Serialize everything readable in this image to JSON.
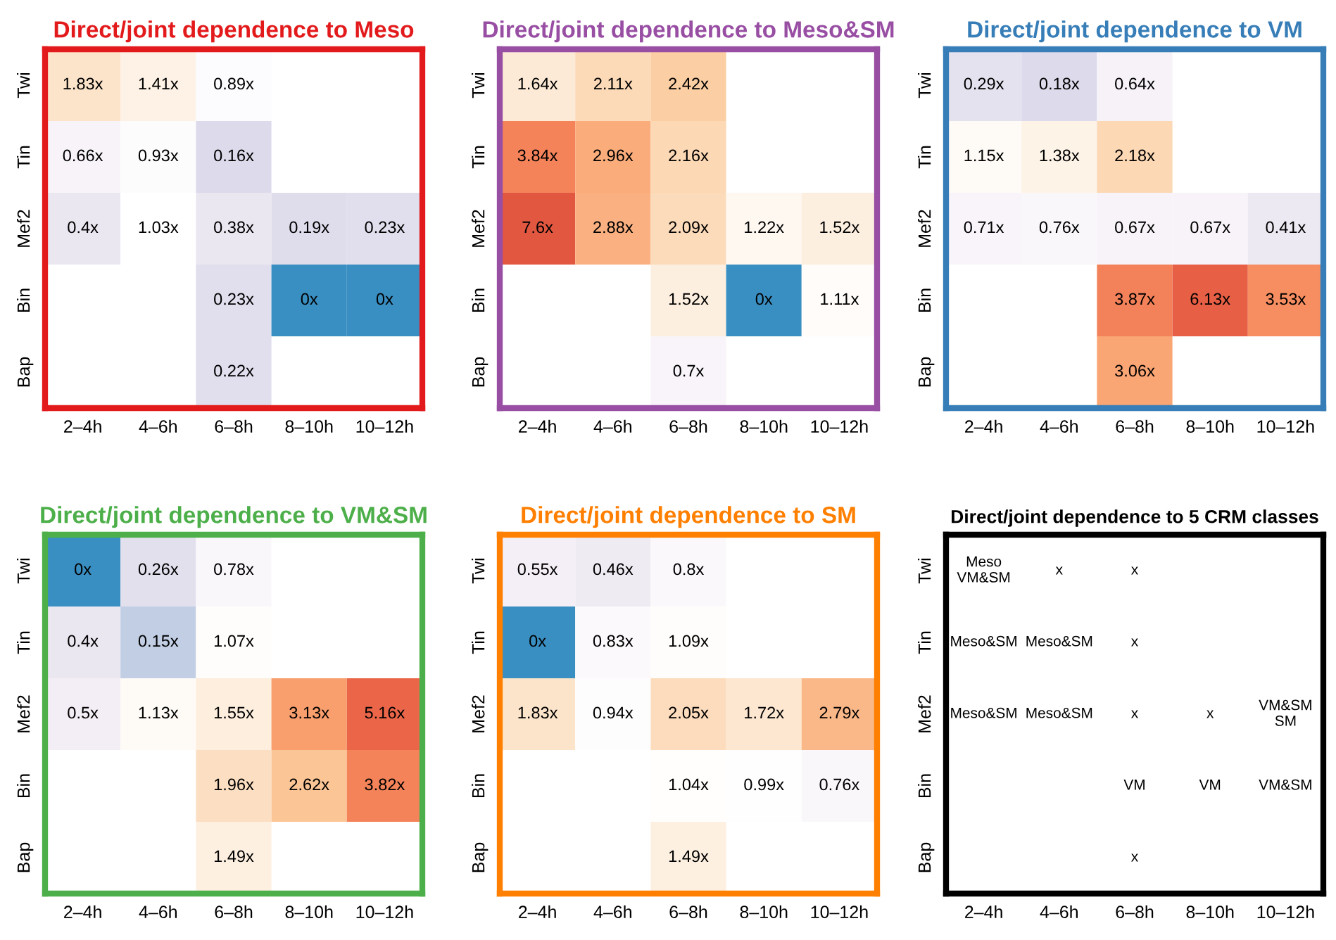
{
  "chart_data": [
    {
      "type": "heatmap",
      "title": "Direct/joint dependence to Meso",
      "color": "#e31a1c",
      "categories": [
        "2–4h",
        "4–6h",
        "6–8h",
        "8–10h",
        "10–12h"
      ],
      "y_categories": [
        "Twi",
        "Tin",
        "Mef2",
        "Bin",
        "Bap"
      ],
      "cells": [
        [
          1.83,
          1.41,
          0.89,
          null,
          null
        ],
        [
          0.66,
          0.93,
          0.16,
          null,
          null
        ],
        [
          0.4,
          1.03,
          0.38,
          0.19,
          0.23
        ],
        [
          null,
          null,
          0.23,
          0,
          0
        ],
        [
          null,
          null,
          0.22,
          null,
          null
        ]
      ],
      "cell_labels": [
        [
          "1.83x",
          "1.41x",
          "0.89x",
          null,
          null
        ],
        [
          "0.66x",
          "0.93x",
          "0.16x",
          null,
          null
        ],
        [
          "0.4x",
          "1.03x",
          "0.38x",
          "0.19x",
          "0.23x"
        ],
        [
          null,
          null,
          "0.23x",
          "0x",
          "0x"
        ],
        [
          null,
          null,
          "0.22x",
          null,
          null
        ]
      ]
    },
    {
      "type": "heatmap",
      "title": "Direct/joint dependence to Meso&SM",
      "color": "#984ea3",
      "categories": [
        "2–4h",
        "4–6h",
        "6–8h",
        "8–10h",
        "10–12h"
      ],
      "y_categories": [
        "Twi",
        "Tin",
        "Mef2",
        "Bin",
        "Bap"
      ],
      "cells": [
        [
          1.64,
          2.11,
          2.42,
          null,
          null
        ],
        [
          3.84,
          2.96,
          2.16,
          null,
          null
        ],
        [
          7.6,
          2.88,
          2.09,
          1.22,
          1.52
        ],
        [
          null,
          null,
          1.52,
          0,
          1.11
        ],
        [
          null,
          null,
          0.7,
          null,
          null
        ]
      ],
      "cell_labels": [
        [
          "1.64x",
          "2.11x",
          "2.42x",
          null,
          null
        ],
        [
          "3.84x",
          "2.96x",
          "2.16x",
          null,
          null
        ],
        [
          "7.6x",
          "2.88x",
          "2.09x",
          "1.22x",
          "1.52x"
        ],
        [
          null,
          null,
          "1.52x",
          "0x",
          "1.11x"
        ],
        [
          null,
          null,
          "0.7x",
          null,
          null
        ]
      ]
    },
    {
      "type": "heatmap",
      "title": "Direct/joint dependence to VM",
      "color": "#377eb8",
      "categories": [
        "2–4h",
        "4–6h",
        "6–8h",
        "8–10h",
        "10–12h"
      ],
      "y_categories": [
        "Twi",
        "Tin",
        "Mef2",
        "Bin",
        "Bap"
      ],
      "cells": [
        [
          0.29,
          0.18,
          0.64,
          null,
          null
        ],
        [
          1.15,
          1.38,
          2.18,
          null,
          null
        ],
        [
          0.71,
          0.76,
          0.67,
          0.67,
          0.41
        ],
        [
          null,
          null,
          3.87,
          6.13,
          3.53
        ],
        [
          null,
          null,
          3.06,
          null,
          null
        ]
      ],
      "cell_labels": [
        [
          "0.29x",
          "0.18x",
          "0.64x",
          null,
          null
        ],
        [
          "1.15x",
          "1.38x",
          "2.18x",
          null,
          null
        ],
        [
          "0.71x",
          "0.76x",
          "0.67x",
          "0.67x",
          "0.41x"
        ],
        [
          null,
          null,
          "3.87x",
          "6.13x",
          "3.53x"
        ],
        [
          null,
          null,
          "3.06x",
          null,
          null
        ]
      ]
    },
    {
      "type": "heatmap",
      "title": "Direct/joint dependence to VM&SM",
      "color": "#4daf4a",
      "categories": [
        "2–4h",
        "4–6h",
        "6–8h",
        "8–10h",
        "10–12h"
      ],
      "y_categories": [
        "Twi",
        "Tin",
        "Mef2",
        "Bin",
        "Bap"
      ],
      "cells": [
        [
          0,
          0.26,
          0.78,
          null,
          null
        ],
        [
          0.4,
          0.15,
          1.07,
          null,
          null
        ],
        [
          0.5,
          1.13,
          1.55,
          3.13,
          5.16
        ],
        [
          null,
          null,
          1.96,
          2.62,
          3.82
        ],
        [
          null,
          null,
          1.49,
          null,
          null
        ]
      ],
      "cell_labels": [
        [
          "0x",
          "0.26x",
          "0.78x",
          null,
          null
        ],
        [
          "0.4x",
          "0.15x",
          "1.07x",
          null,
          null
        ],
        [
          "0.5x",
          "1.13x",
          "1.55x",
          "3.13x",
          "5.16x"
        ],
        [
          null,
          null,
          "1.96x",
          "2.62x",
          "3.82x"
        ],
        [
          null,
          null,
          "1.49x",
          null,
          null
        ]
      ]
    },
    {
      "type": "heatmap",
      "title": "Direct/joint dependence to SM",
      "color": "#ff7f00",
      "categories": [
        "2–4h",
        "4–6h",
        "6–8h",
        "8–10h",
        "10–12h"
      ],
      "y_categories": [
        "Twi",
        "Tin",
        "Mef2",
        "Bin",
        "Bap"
      ],
      "cells": [
        [
          0.55,
          0.46,
          0.8,
          null,
          null
        ],
        [
          0,
          0.83,
          1.09,
          null,
          null
        ],
        [
          1.83,
          0.94,
          2.05,
          1.72,
          2.79
        ],
        [
          null,
          null,
          1.04,
          0.99,
          0.76
        ],
        [
          null,
          null,
          1.49,
          null,
          null
        ]
      ],
      "cell_labels": [
        [
          "0.55x",
          "0.46x",
          "0.8x",
          null,
          null
        ],
        [
          "0x",
          "0.83x",
          "1.09x",
          null,
          null
        ],
        [
          "1.83x",
          "0.94x",
          "2.05x",
          "1.72x",
          "2.79x"
        ],
        [
          null,
          null,
          "1.04x",
          "0.99x",
          "0.76x"
        ],
        [
          null,
          null,
          "1.49x",
          null,
          null
        ]
      ]
    },
    {
      "type": "other",
      "title": "Direct/joint dependence to 5 CRM classes",
      "color": "#000000",
      "categories": [
        "2–4h",
        "4–6h",
        "6–8h",
        "8–10h",
        "10–12h"
      ],
      "y_categories": [
        "Twi",
        "Tin",
        "Mef2",
        "Bin",
        "Bap"
      ],
      "cell_labels": [
        [
          "Meso\nVM&SM",
          "x",
          "x",
          null,
          null
        ],
        [
          "Meso&SM",
          "Meso&SM",
          "x",
          null,
          null
        ],
        [
          "Meso&SM",
          "Meso&SM",
          "x",
          "x",
          "VM&SM\nSM"
        ],
        [
          null,
          null,
          "VM",
          "VM",
          "VM&SM"
        ],
        [
          null,
          null,
          "x",
          null,
          null
        ]
      ]
    }
  ]
}
